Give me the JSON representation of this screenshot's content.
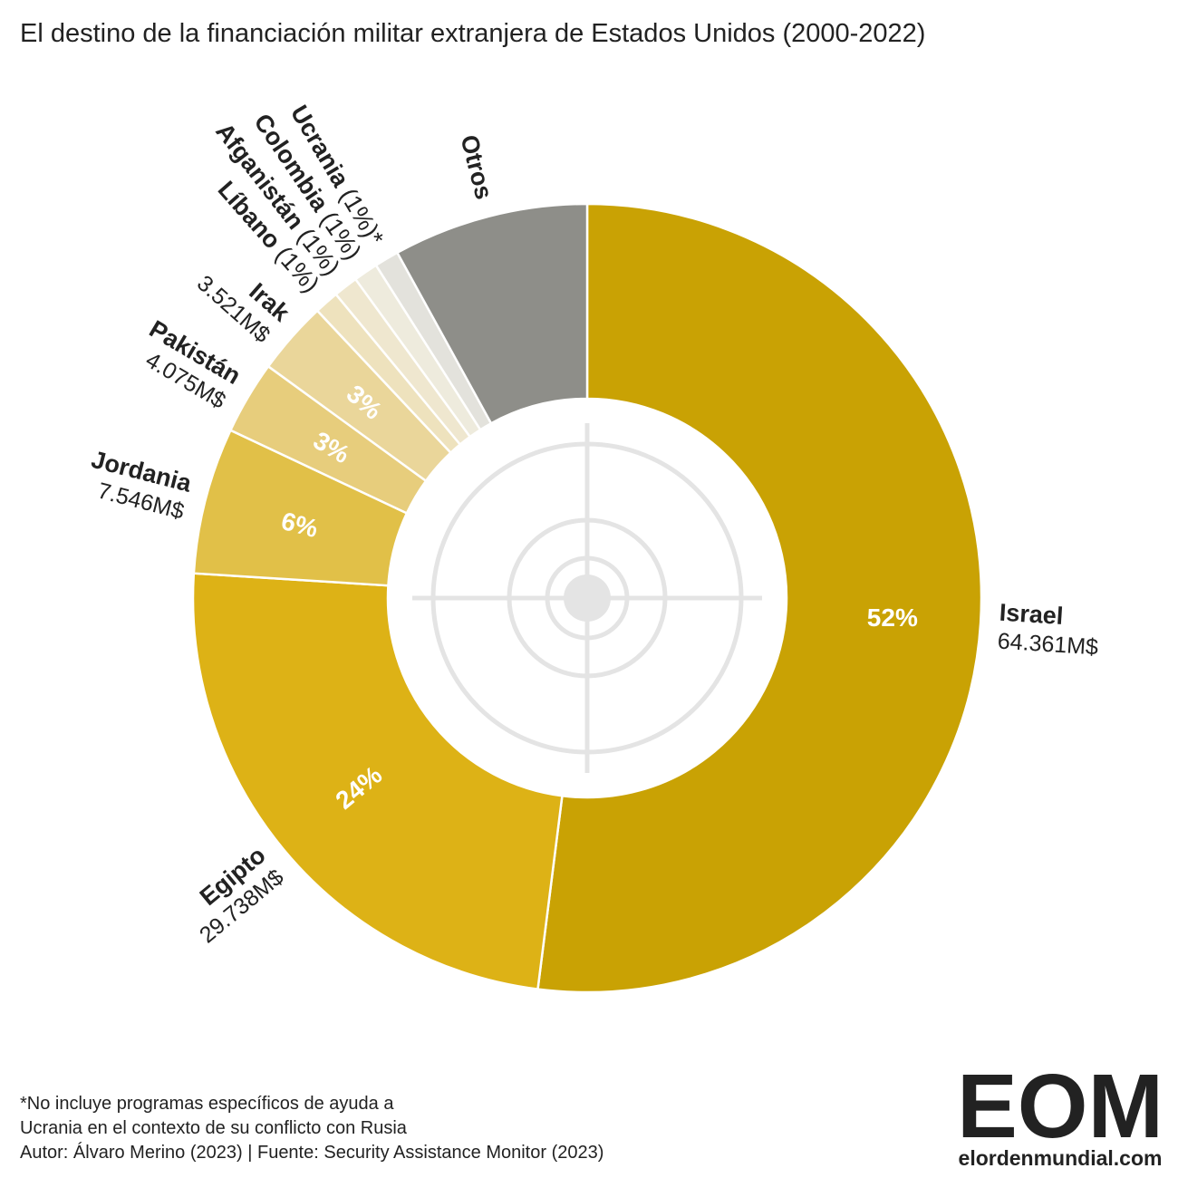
{
  "chart_data": {
    "type": "donut",
    "title": "El destino de la financiación militar extranjera de Estados Unidos (2000-2022)",
    "categories": [
      "Israel",
      "Egipto",
      "Jordania",
      "Pakistán",
      "Irak",
      "Líbano",
      "Afganistán",
      "Colombia",
      "Ucrania",
      "Otros"
    ],
    "values": [
      52,
      24,
      6,
      3,
      3,
      1,
      1,
      1,
      1,
      8
    ],
    "value_labels": [
      "52%",
      "24%",
      "6%",
      "3%",
      "3%",
      "(1%)",
      "(1%)",
      "(1%)",
      "(1%)*",
      null
    ],
    "amount_labels": [
      "64.361M$",
      "29.738M$",
      "7.546M$",
      "4.075M$",
      "3.521M$",
      null,
      null,
      null,
      null,
      null
    ],
    "colors": [
      "#c9a204",
      "#ddb216",
      "#e1c048",
      "#e7cd7c",
      "#ead69a",
      "#eee2bd",
      "#efe7cf",
      "#eeebdd",
      "#e3e2dc",
      "#8e8e89"
    ]
  },
  "footer": {
    "note_lines": [
      "*No incluye programas específicos de ayuda a",
      "Ucrania en el contexto de su conflicto con Rusia"
    ],
    "credits": "Autor: Álvaro Merino (2023) | Fuente: Security Assistance Monitor (2023)"
  },
  "logo": {
    "mark": "EOM",
    "site": "elordenmundial.com"
  }
}
